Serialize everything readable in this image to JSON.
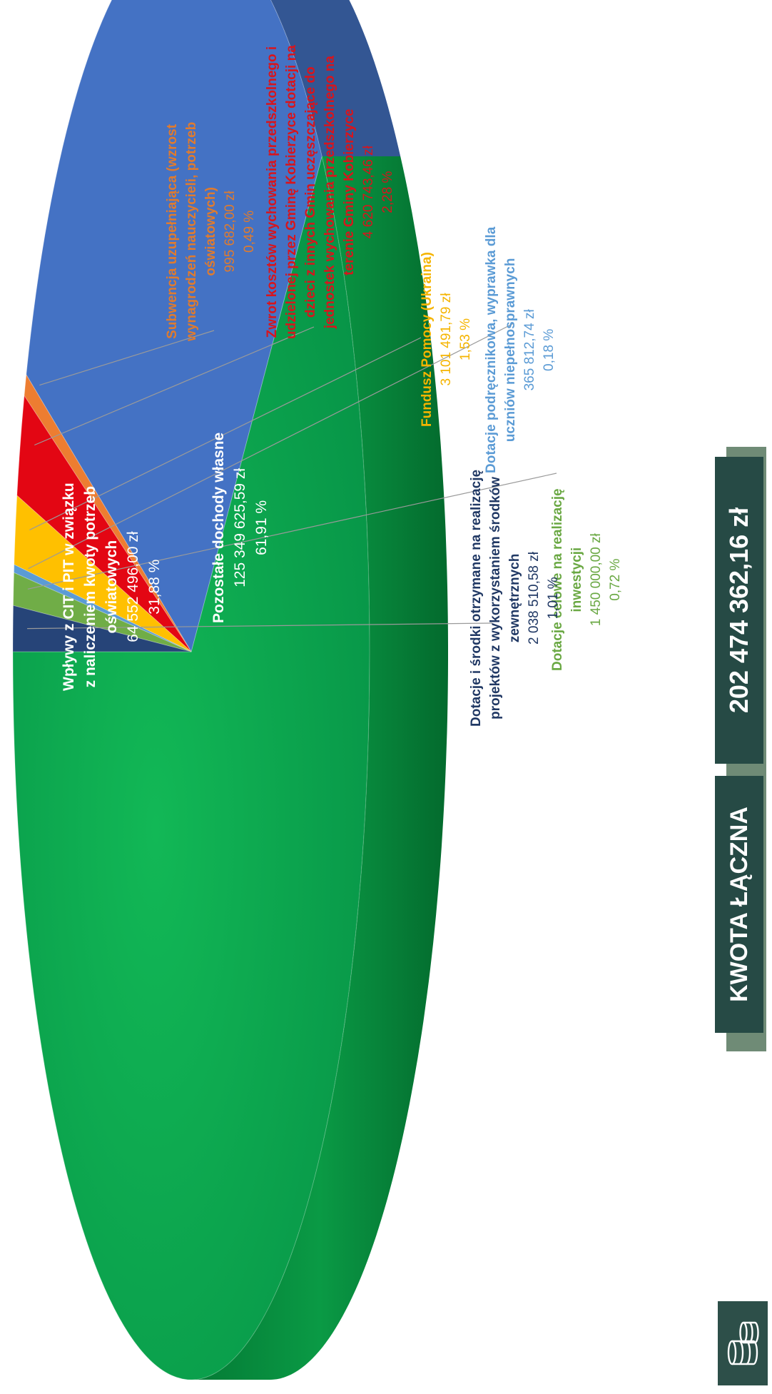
{
  "chart_data": {
    "type": "pie",
    "title": "",
    "slices": [
      {
        "name": "Pozostałe dochody własne",
        "amount": "125 349 625,59 zł",
        "percent_label": "61,91 %",
        "value": 61.91,
        "color": "#0aa84f"
      },
      {
        "name": "Wpływy z CIT i PIT w związku z naliczeniem kwoty potrzeb oświatowych",
        "amount": "64 552 496,00 zł",
        "percent_label": "31,88 %",
        "value": 31.88,
        "color": "#4472c4"
      },
      {
        "name": "Subwencja uzupełniająca (wzrost wynagrodzeń nauczycieli, potrzeb oświatowych)",
        "amount": "995 682,00 zł",
        "percent_label": "0,49 %",
        "value": 0.49,
        "color": "#ed7d31"
      },
      {
        "name": "Zwrot kosztów wychowania przedszkolnego i udzielonej przez Gminę Kobierzyce dotacji na dzieci z innych Gmin uczęszczające do jednostek wychowania przedszkolnego na terenie Gminy Kobierzyce",
        "amount": "4 620 743,46 zł",
        "percent_label": "2,28 %",
        "value": 2.28,
        "color": "#e30613"
      },
      {
        "name": "Fundusz Pomocy (Ukraina)",
        "amount": "3 101 491,79 zł",
        "percent_label": "1,53 %",
        "value": 1.53,
        "color": "#ffc000"
      },
      {
        "name": "Dotacje podręcznikowa, wyprawka dla uczniów niepełnosprawnych",
        "amount": "365 812,74 zł",
        "percent_label": "0,18 %",
        "value": 0.18,
        "color": "#5b9bd5"
      },
      {
        "name": "Dotacje celowe na realizację inwestycji",
        "amount": "1 450 000,00 zł",
        "percent_label": "0,72 %",
        "value": 0.72,
        "color": "#70ad47"
      },
      {
        "name": "Dotacje i środki otrzymane na realizację projektów z wykorzystaniem środków zewnętrznych",
        "amount": "2 038 510,58 zł",
        "percent_label": "1,01 %",
        "value": 1.01,
        "color": "#264478"
      }
    ]
  },
  "labels": {
    "pozostale": {
      "l1": "Pozostałe dochody własne",
      "l2": "125 349 625,59 zł",
      "l3": "61,91 %"
    },
    "wplywy": {
      "l1": "Wpływy z CIT i PIT w związku",
      "l2": "z naliczeniem kwoty potrzeb",
      "l3": "oświatowych",
      "l4": "64 552 496,00 zł",
      "l5": "31,88 %"
    },
    "subwencja": {
      "l1": "Subwencja uzupełniająca (wzrost",
      "l2": "wynagrodzeń nauczycieli, potrzeb",
      "l3": "oświatowych)",
      "l4": "995 682,00 zł",
      "l5": "0,49 %",
      "color": "#e07b2e"
    },
    "zwrot": {
      "l1": "Zwrot kosztów wychowania przedszkolnego i",
      "l2": "udzielonej przez Gminę Kobierzyce dotacji na",
      "l3": "dzieci z innych Gmin uczęszczające do",
      "l4": "jednostek wychowania przedszkolnego na",
      "l5": "terenie Gminy Kobierzyce",
      "l6": "4 620 743,46 zł",
      "l7": "2,28 %",
      "color": "#d9141c"
    },
    "fundusz": {
      "l1": "Fundusz Pomocy (Ukraina)",
      "l2": "3 101 491,79 zł",
      "l3": "1,53 %",
      "color": "#f5b400"
    },
    "podrecznik": {
      "l1": "Dotacje podręcznikowa, wyprawka dla",
      "l2": "uczniów niepełnosprawnych",
      "l3": "365 812,74 zł",
      "l4": "0,18 %",
      "color": "#5b9bd5"
    },
    "celowe": {
      "l1": "Dotacje celowe na realizację",
      "l2": "inwestycji",
      "l3": "1 450 000,00 zł",
      "l4": "0,72 %",
      "color": "#6aa843"
    },
    "projekty": {
      "l1": "Dotacje i środki otrzymane na realizację",
      "l2": "projektów z wykorzystaniem środków",
      "l3": "zewnętrznych",
      "l4": "2 038 510,58 zł",
      "l5": "1,01 %",
      "color": "#203864"
    }
  },
  "summary": {
    "label": "KWOTA ŁĄCZNA",
    "value": "202 474 362,16 zł"
  },
  "icons": {
    "coins": "coins-stack-icon"
  }
}
